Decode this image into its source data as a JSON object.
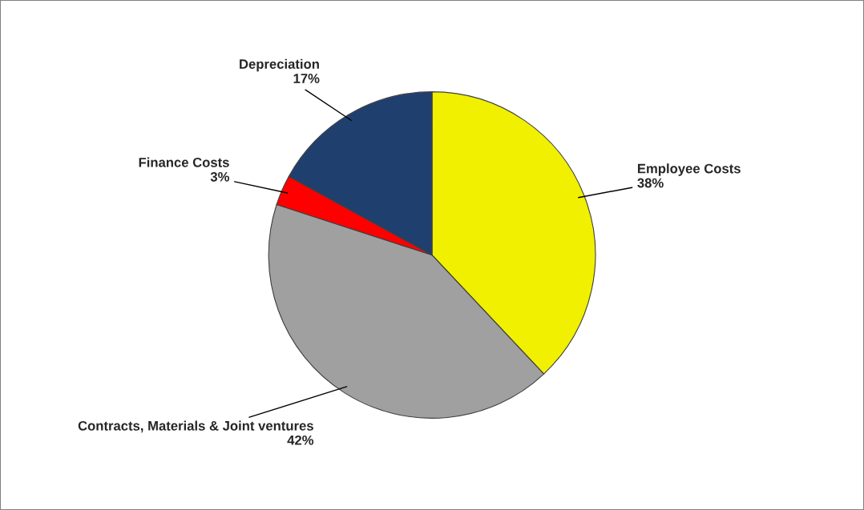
{
  "chart_data": {
    "type": "pie",
    "categories": [
      "Employee Costs",
      "Contracts, Materials & Joint ventures",
      "Finance Costs",
      "Depreciation"
    ],
    "values": [
      38,
      42,
      3,
      17
    ],
    "value_labels": [
      "38%",
      "42%",
      "3%",
      "17%"
    ],
    "colors": [
      "#f0f000",
      "#a0a0a0",
      "#ff0000",
      "#1f3f6f"
    ],
    "legend": false
  }
}
